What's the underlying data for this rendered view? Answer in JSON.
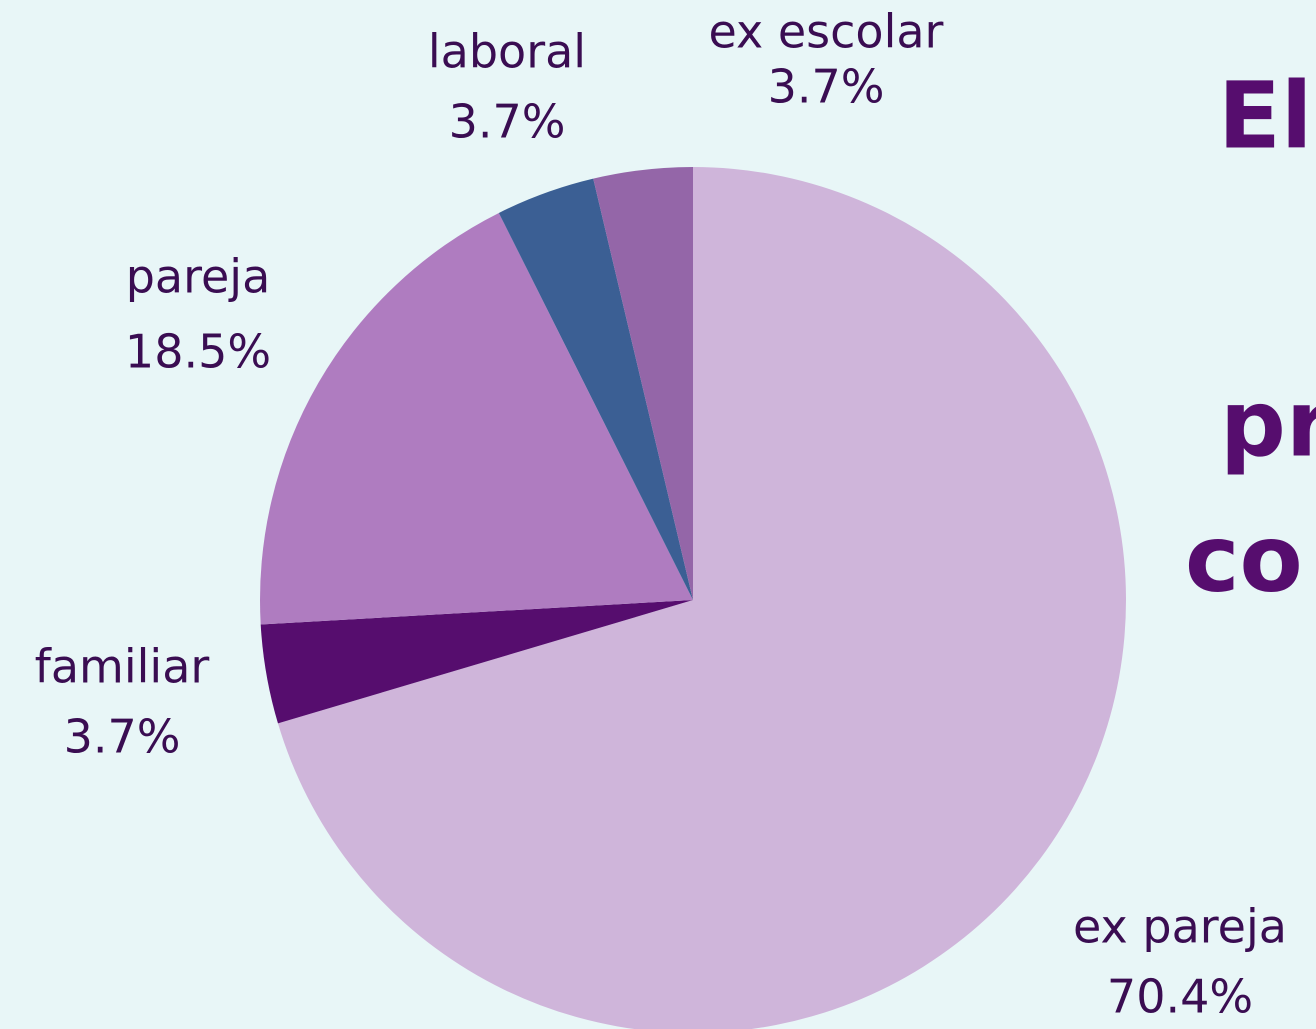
{
  "chart_data": {
    "type": "pie",
    "categories": [
      "ex pareja",
      "familiar",
      "pareja",
      "laboral",
      "ex escolar"
    ],
    "values": [
      70.4,
      3.7,
      18.5,
      3.7,
      3.7
    ],
    "value_labels": [
      "70.4%",
      "3.7%",
      "18.5%",
      "3.7%",
      "3.7%"
    ],
    "colors": [
      "#cfb5da",
      "#560d6e",
      "#af7cc0",
      "#3b5f94",
      "#9466a8"
    ],
    "annotations": [
      "El",
      "pr",
      "co"
    ]
  }
}
